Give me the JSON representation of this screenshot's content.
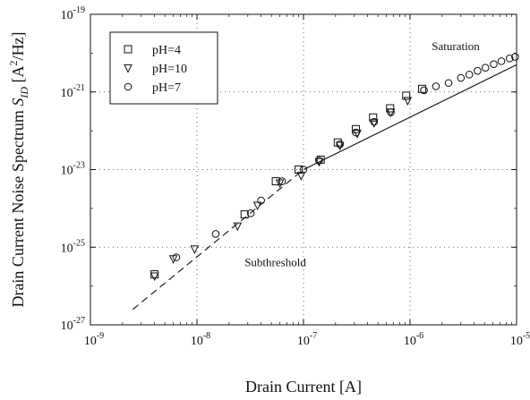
{
  "chart_data": {
    "type": "scatter",
    "xscale": "log",
    "yscale": "log",
    "xlim": [
      1e-09,
      1e-05
    ],
    "ylim": [
      1e-27,
      1e-19
    ],
    "grid": true,
    "xlabel": "Drain Current [A]",
    "ylabel": "Drain Current Noise Spectrum S_ID [A^2/Hz]",
    "xticks": [
      {
        "value": 1e-09,
        "base": "10",
        "exp": "-9"
      },
      {
        "value": 1e-08,
        "base": "10",
        "exp": "-8"
      },
      {
        "value": 1e-07,
        "base": "10",
        "exp": "-7"
      },
      {
        "value": 1e-06,
        "base": "10",
        "exp": "-6"
      },
      {
        "value": 1e-05,
        "base": "10",
        "exp": "-5"
      }
    ],
    "yticks": [
      {
        "value": 1e-27,
        "base": "10",
        "exp": "-27"
      },
      {
        "value": 1e-25,
        "base": "10",
        "exp": "-25"
      },
      {
        "value": 1e-23,
        "base": "10",
        "exp": "-23"
      },
      {
        "value": 1e-21,
        "base": "10",
        "exp": "-21"
      },
      {
        "value": 1e-19,
        "base": "10",
        "exp": "-19"
      }
    ],
    "legend_position": "top-left",
    "annotations": [
      {
        "text": "Saturation",
        "x": 1.6e-06,
        "y": 1.2e-20
      },
      {
        "text": "Subthreshold",
        "x": 2.8e-08,
        "y": 3.2e-26
      }
    ],
    "series": [
      {
        "name": "pH=4",
        "marker": "square",
        "points": [
          [
            4e-09,
            2e-26
          ],
          [
            2.8e-08,
            7e-25
          ],
          [
            5.5e-08,
            5e-24
          ],
          [
            9e-08,
            1e-23
          ],
          [
            1.45e-07,
            1.8e-23
          ],
          [
            2.1e-07,
            5e-23
          ],
          [
            3.1e-07,
            1.1e-22
          ],
          [
            4.5e-07,
            2.2e-22
          ],
          [
            6.5e-07,
            3.8e-22
          ],
          [
            9.2e-07,
            8e-22
          ],
          [
            1.3e-06,
            1.2e-21
          ]
        ]
      },
      {
        "name": "pH=10",
        "marker": "triangle-down",
        "points": [
          [
            4e-09,
            1.8e-26
          ],
          [
            6e-09,
            5e-26
          ],
          [
            9.5e-09,
            9e-26
          ],
          [
            2.4e-08,
            3.5e-25
          ],
          [
            3.7e-08,
            1.2e-24
          ],
          [
            6e-08,
            4.5e-24
          ],
          [
            9.5e-08,
            7e-24
          ],
          [
            1.4e-07,
            1.6e-23
          ],
          [
            2.2e-07,
            4.2e-23
          ],
          [
            3.2e-07,
            8.5e-23
          ],
          [
            4.6e-07,
            1.6e-22
          ],
          [
            6.6e-07,
            3e-22
          ],
          [
            9.5e-07,
            6e-22
          ]
        ]
      },
      {
        "name": "pH=7",
        "marker": "circle",
        "points": [
          [
            6.4e-09,
            5.5e-26
          ],
          [
            1.5e-08,
            2.2e-25
          ],
          [
            3.2e-08,
            7.5e-25
          ],
          [
            4e-08,
            1.6e-24
          ],
          [
            6.3e-08,
            5e-24
          ],
          [
            1e-07,
            1e-23
          ],
          [
            1.4e-07,
            1.7e-23
          ],
          [
            2.2e-07,
            4.5e-23
          ],
          [
            3.1e-07,
            9e-23
          ],
          [
            4.6e-07,
            1.7e-22
          ],
          [
            6.6e-07,
            3e-22
          ],
          [
            1.35e-06,
            1.1e-21
          ],
          [
            1.75e-06,
            1.4e-21
          ],
          [
            2.3e-06,
            1.7e-21
          ],
          [
            3e-06,
            2.3e-21
          ],
          [
            3.6e-06,
            2.8e-21
          ],
          [
            4.3e-06,
            3.5e-21
          ],
          [
            5.1e-06,
            4.2e-21
          ],
          [
            6.1e-06,
            5.2e-21
          ],
          [
            7.2e-06,
            6.2e-21
          ],
          [
            8.6e-06,
            7.3e-21
          ],
          [
            9.7e-06,
            8e-21
          ]
        ]
      }
    ],
    "fit_lines": [
      {
        "style": "dashed",
        "points": [
          [
            2.5e-09,
            2.5e-27
          ],
          [
            1e-07,
            1e-23
          ]
        ]
      },
      {
        "style": "solid",
        "points": [
          [
            1e-07,
            1e-23
          ],
          [
            1e-05,
            5e-21
          ]
        ]
      }
    ]
  }
}
